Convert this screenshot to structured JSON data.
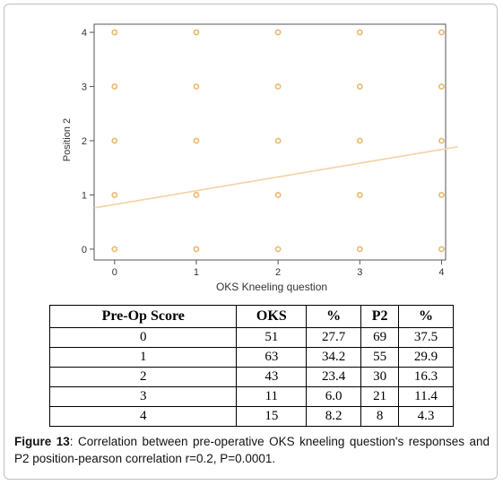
{
  "chart_data": {
    "type": "scatter",
    "xlabel": "OKS Kneeling question",
    "ylabel": "Position 2",
    "x_ticks": [
      "0",
      "1",
      "2",
      "3",
      "4"
    ],
    "y_ticks": [
      "0",
      "1",
      "2",
      "3",
      "4"
    ],
    "xlim": [
      -0.25,
      4.05
    ],
    "ylim": [
      -0.2,
      4.15
    ],
    "points": [
      [
        0,
        0
      ],
      [
        1,
        0
      ],
      [
        2,
        0
      ],
      [
        3,
        0
      ],
      [
        4,
        0
      ],
      [
        0,
        1
      ],
      [
        1,
        1
      ],
      [
        2,
        1
      ],
      [
        3,
        1
      ],
      [
        4,
        1
      ],
      [
        0,
        2
      ],
      [
        1,
        2
      ],
      [
        2,
        2
      ],
      [
        3,
        2
      ],
      [
        4,
        2
      ],
      [
        0,
        3
      ],
      [
        1,
        3
      ],
      [
        2,
        3
      ],
      [
        3,
        3
      ],
      [
        4,
        3
      ],
      [
        0,
        4
      ],
      [
        1,
        4
      ],
      [
        2,
        4
      ],
      [
        3,
        4
      ],
      [
        4,
        4
      ]
    ],
    "fit_line": {
      "x": [
        -0.25,
        4.2
      ],
      "y": [
        0.76,
        1.89
      ]
    },
    "marker_color": "#e8b86a",
    "line_color": "#f3d2a3",
    "grid": false
  },
  "table": {
    "headers": [
      "Pre-Op Score",
      "OKS",
      "%",
      "P2",
      "%"
    ],
    "rows": [
      [
        "0",
        "51",
        "27.7",
        "69",
        "37.5"
      ],
      [
        "1",
        "63",
        "34.2",
        "55",
        "29.9"
      ],
      [
        "2",
        "43",
        "23.4",
        "30",
        "16.3"
      ],
      [
        "3",
        "11",
        "6.0",
        "21",
        "11.4"
      ],
      [
        "4",
        "15",
        "8.2",
        "8",
        "4.3"
      ]
    ]
  },
  "caption": {
    "figure_label": "Figure 13",
    "text": ": Correlation between pre-operative OKS kneeling question's responses and P2 position-pearson correlation r=0.2, P=0.0001."
  }
}
